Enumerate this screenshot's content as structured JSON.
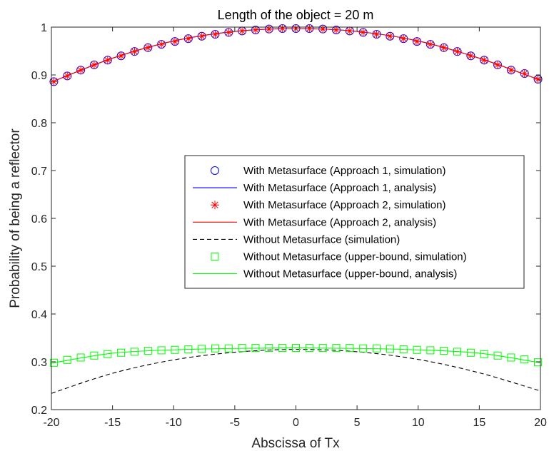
{
  "chart_data": {
    "type": "line",
    "title": "Length of the object = 20 m",
    "xlabel": "Abscissa of Tx",
    "ylabel": "Probability of being a reflector",
    "xlim": [
      -20,
      20
    ],
    "ylim": [
      0.2,
      1
    ],
    "xticks": [
      "-20",
      "-15",
      "-10",
      "-5",
      "0",
      "5",
      "10",
      "15",
      "20"
    ],
    "yticks": [
      "0.2",
      "0.3",
      "0.4",
      "0.5",
      "0.6",
      "0.7",
      "0.8",
      "0.9",
      "1"
    ],
    "grid": false,
    "legend_position": "center-right",
    "series": [
      {
        "name": "With Metasurface (Approach 1, simulation)",
        "marker": "circle",
        "line": "none",
        "color": "#0000ff",
        "x": [
          -19.8,
          -18.7,
          -17.6,
          -16.5,
          -15.4,
          -14.3,
          -13.2,
          -12.1,
          -11.0,
          -9.9,
          -8.8,
          -7.7,
          -6.6,
          -5.5,
          -4.4,
          -3.3,
          -2.2,
          -1.1,
          0.0,
          1.1,
          2.2,
          3.3,
          4.4,
          5.5,
          6.6,
          7.7,
          8.8,
          9.9,
          11.0,
          12.1,
          13.2,
          14.3,
          15.4,
          16.5,
          17.6,
          18.7,
          19.8
        ],
        "y": [
          0.886,
          0.898,
          0.91,
          0.921,
          0.931,
          0.94,
          0.949,
          0.957,
          0.964,
          0.97,
          0.976,
          0.981,
          0.985,
          0.989,
          0.992,
          0.994,
          0.996,
          0.997,
          0.997,
          0.997,
          0.996,
          0.994,
          0.992,
          0.989,
          0.985,
          0.981,
          0.976,
          0.97,
          0.964,
          0.957,
          0.949,
          0.94,
          0.931,
          0.921,
          0.91,
          0.903,
          0.891
        ]
      },
      {
        "name": "With Metasurface (Approach 1, analysis)",
        "marker": "none",
        "line": "solid",
        "color": "#0000ff",
        "x": [
          -20,
          -15,
          -10,
          -5,
          0,
          5,
          10,
          15,
          20
        ],
        "y": [
          0.885,
          0.935,
          0.971,
          0.991,
          0.997,
          0.991,
          0.971,
          0.935,
          0.889
        ]
      },
      {
        "name": "With Metasurface (Approach 2, simulation)",
        "marker": "asterisk",
        "line": "none",
        "color": "#ff0000",
        "x": [
          -19.8,
          -18.7,
          -17.6,
          -16.5,
          -15.4,
          -14.3,
          -13.2,
          -12.1,
          -11.0,
          -9.9,
          -8.8,
          -7.7,
          -6.6,
          -5.5,
          -4.4,
          -3.3,
          -2.2,
          -1.1,
          0.0,
          1.1,
          2.2,
          3.3,
          4.4,
          5.5,
          6.6,
          7.7,
          8.8,
          9.9,
          11.0,
          12.1,
          13.2,
          14.3,
          15.4,
          16.5,
          17.6,
          18.7,
          19.8
        ],
        "y": [
          0.886,
          0.898,
          0.91,
          0.921,
          0.931,
          0.94,
          0.949,
          0.957,
          0.964,
          0.97,
          0.976,
          0.981,
          0.985,
          0.989,
          0.992,
          0.994,
          0.996,
          0.997,
          0.997,
          0.997,
          0.996,
          0.994,
          0.992,
          0.989,
          0.985,
          0.981,
          0.976,
          0.97,
          0.964,
          0.957,
          0.949,
          0.94,
          0.931,
          0.921,
          0.91,
          0.903,
          0.891
        ]
      },
      {
        "name": "With Metasurface (Approach 2, analysis)",
        "marker": "none",
        "line": "solid",
        "color": "#ff0000",
        "x": [
          -20,
          -15,
          -10,
          -5,
          0,
          5,
          10,
          15,
          20
        ],
        "y": [
          0.885,
          0.935,
          0.971,
          0.991,
          0.997,
          0.991,
          0.971,
          0.935,
          0.889
        ]
      },
      {
        "name": "Without Metasurface (simulation)",
        "marker": "none",
        "line": "dashed",
        "color": "#000000",
        "x": [
          -20,
          -15,
          -10,
          -5,
          0,
          5,
          10,
          15,
          20
        ],
        "y": [
          0.234,
          0.276,
          0.304,
          0.32,
          0.326,
          0.321,
          0.305,
          0.277,
          0.239
        ]
      },
      {
        "name": "Without Metasurface (upper-bound, simulation)",
        "marker": "square",
        "line": "none",
        "color": "#00ff00",
        "x": [
          -19.8,
          -18.7,
          -17.6,
          -16.5,
          -15.4,
          -14.3,
          -13.2,
          -12.1,
          -11.0,
          -9.9,
          -8.8,
          -7.7,
          -6.6,
          -5.5,
          -4.4,
          -3.3,
          -2.2,
          -1.1,
          0.0,
          1.1,
          2.2,
          3.3,
          4.4,
          5.5,
          6.6,
          7.7,
          8.8,
          9.9,
          11.0,
          12.1,
          13.2,
          14.3,
          15.4,
          16.5,
          17.6,
          18.7,
          19.8
        ],
        "y": [
          0.298,
          0.304,
          0.309,
          0.313,
          0.316,
          0.319,
          0.321,
          0.323,
          0.324,
          0.325,
          0.326,
          0.327,
          0.328,
          0.328,
          0.329,
          0.329,
          0.329,
          0.329,
          0.329,
          0.329,
          0.329,
          0.329,
          0.329,
          0.328,
          0.328,
          0.327,
          0.326,
          0.325,
          0.324,
          0.323,
          0.321,
          0.319,
          0.316,
          0.313,
          0.309,
          0.305,
          0.299
        ]
      },
      {
        "name": "Without Metasurface (upper-bound, analysis)",
        "marker": "none",
        "line": "solid",
        "color": "#00ff00",
        "x": [
          -20,
          -15,
          -10,
          -5,
          0,
          5,
          10,
          15,
          20
        ],
        "y": [
          0.297,
          0.318,
          0.325,
          0.328,
          0.329,
          0.328,
          0.325,
          0.318,
          0.298
        ]
      }
    ]
  }
}
